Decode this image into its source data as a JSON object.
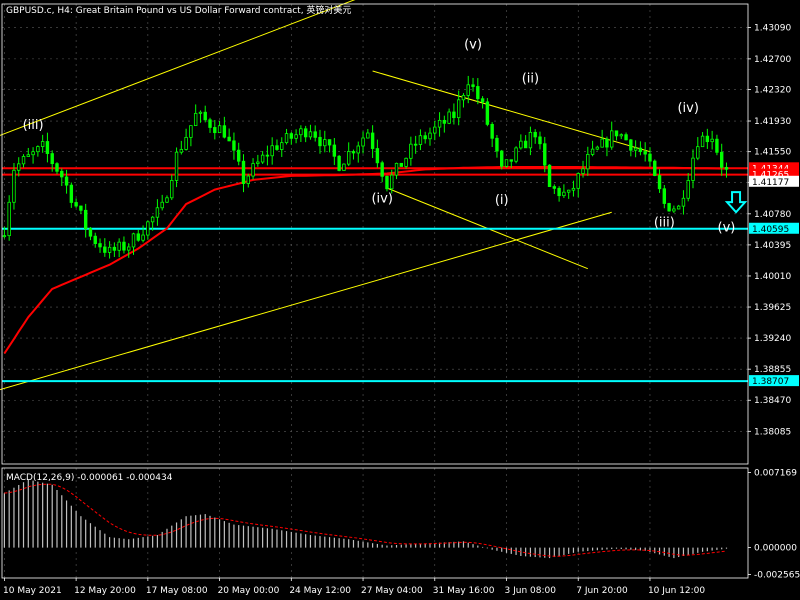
{
  "chart_title": "GBPUSD.c, H4:  Great Britain Pound vs US Dollar Forward contract, 英镑对美元",
  "macd_label": "MACD(12,26,9) -0.000061 -0.000434",
  "colors": {
    "background": "#000000",
    "grid": "#5a5a5a",
    "candle": "#00ff00",
    "ma": "#ff0000",
    "trendline": "#ffff00",
    "support": "#00ffff",
    "price_red": "#ff0000",
    "price_cyan": "#00ffff",
    "macd_hist": "#c0c0c0",
    "macd_signal": "#ff0000"
  },
  "chart_data": {
    "type": "candlestick",
    "symbol": "GBPUSD.c",
    "timeframe": "H4",
    "ylim": [
      1.3768,
      1.4338
    ],
    "y_ticks": [
      "1.43090",
      "1.42700",
      "1.42320",
      "1.41930",
      "1.41550",
      "1.41170",
      "1.40780",
      "1.40395",
      "1.40010",
      "1.39625",
      "1.39240",
      "1.38855",
      "1.38470",
      "1.38085"
    ],
    "x_ticks": [
      "10 May 2021",
      "12 May 20:00",
      "17 May 08:00",
      "20 May 00:00",
      "24 May 12:00",
      "27 May 04:00",
      "31 May 16:00",
      "3 Jun 08:00",
      "7 Jun 20:00",
      "10 Jun 12:00"
    ],
    "highlighted_prices": [
      {
        "label": "1.41344",
        "value": 1.41344,
        "color": "red",
        "style": "line"
      },
      {
        "label": "1.41265",
        "value": 1.41265,
        "color": "red",
        "style": "line"
      },
      {
        "label": "1.41177",
        "value": 1.41177,
        "color": "white",
        "style": "tag"
      },
      {
        "label": "1.40595",
        "value": 1.40595,
        "color": "cyan",
        "style": "line"
      },
      {
        "label": "1.38707",
        "value": 1.38707,
        "color": "cyan",
        "style": "line"
      }
    ],
    "wave_labels": [
      {
        "label": "(iii)",
        "bar": 6,
        "price": 1.4183
      },
      {
        "label": "(v)",
        "bar": 98,
        "price": 1.4283
      },
      {
        "label": "(ii)",
        "bar": 110,
        "price": 1.4241
      },
      {
        "label": "(iv)",
        "bar": 79,
        "price": 1.4092
      },
      {
        "label": "(i)",
        "bar": 104,
        "price": 1.409
      },
      {
        "label": "(iv)",
        "bar": 143,
        "price": 1.4204
      },
      {
        "label": "(iii)",
        "bar": 138,
        "price": 1.4062
      },
      {
        "label": "(v)",
        "bar": 151,
        "price": 1.4056
      }
    ],
    "arrow": {
      "type": "down",
      "bar": 153,
      "price": 1.409
    },
    "macd": {
      "params": "12,26,9",
      "ylim": [
        -0.0029,
        0.0076
      ],
      "y_ticks": [
        "0.007169",
        "0.000000",
        "-0.002565"
      ],
      "main": -6.1e-05,
      "signal": -0.000434
    }
  }
}
